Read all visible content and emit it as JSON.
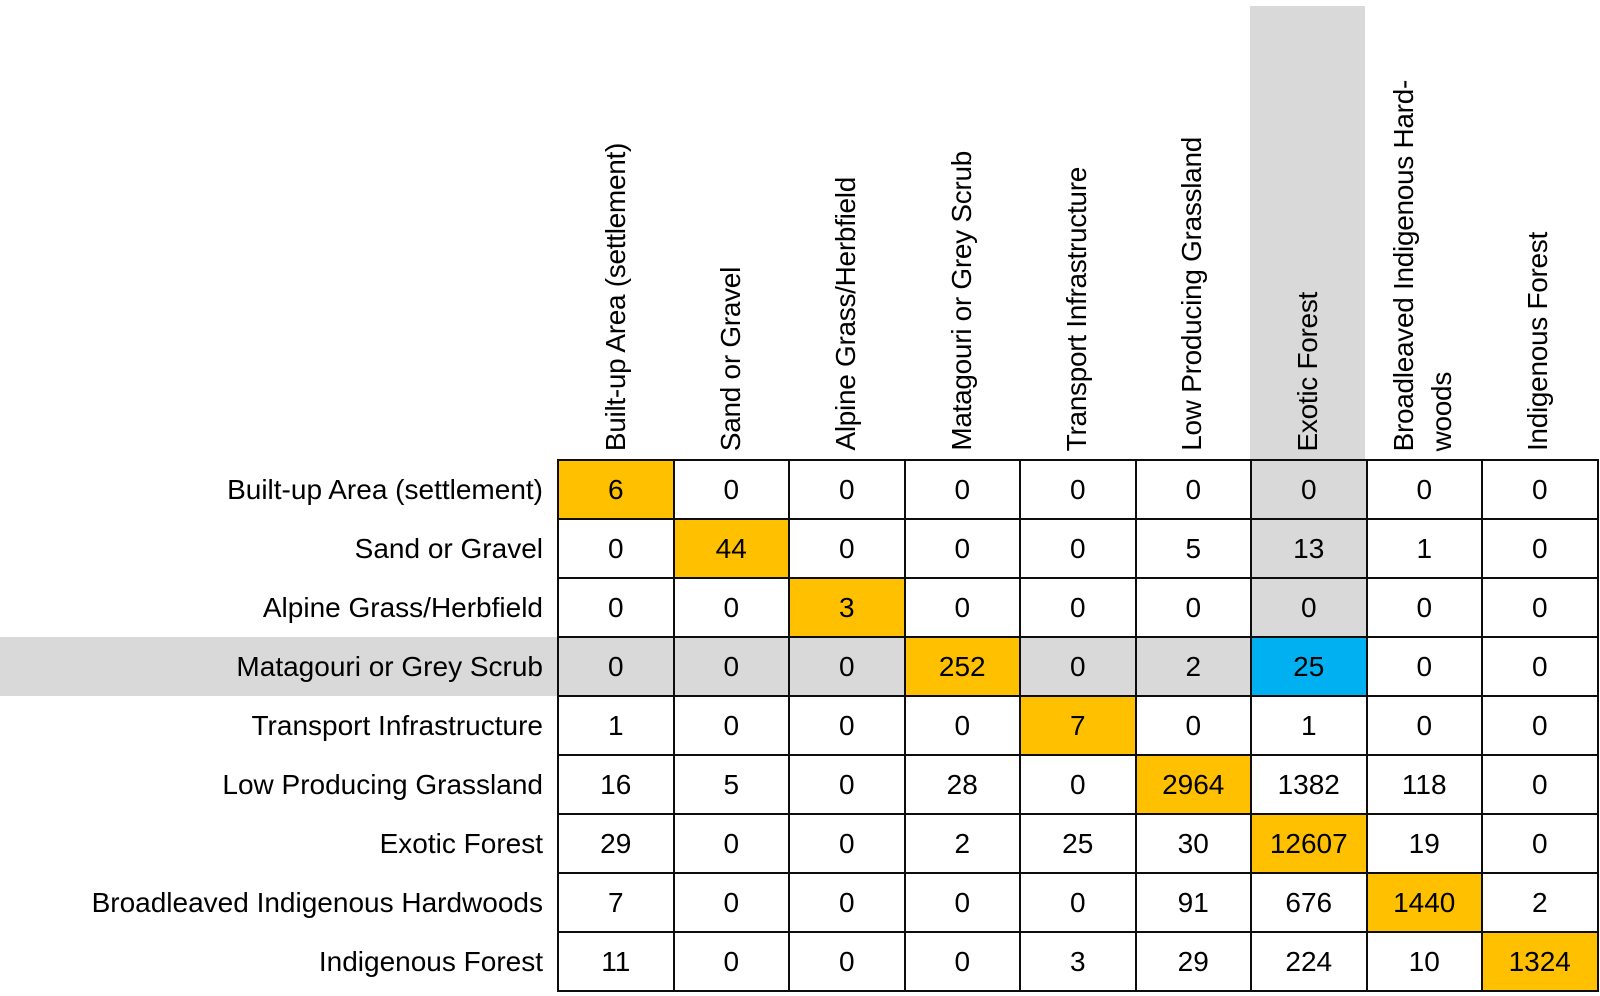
{
  "colors": {
    "diagonal": "#FFC000",
    "selected": "#00B0F0",
    "band": "#D9D9D9",
    "border": "#0d0d0d",
    "text": "#000000",
    "background": "#FFFFFF"
  },
  "chart_data": {
    "type": "table",
    "title": "",
    "description_visible": false,
    "row_labels": [
      "Built-up Area (settlement)",
      "Sand or Gravel",
      "Alpine Grass/Herbfield",
      "Matagouri or Grey Scrub",
      "Transport Infrastructure",
      "Low Producing Grassland",
      "Exotic Forest",
      "Broadleaved Indigenous Hardwoods",
      "Indigenous Forest"
    ],
    "col_labels": [
      "Built-up Area (settlement)",
      "Sand or Gravel",
      "Alpine Grass/Herbfield",
      "Matagouri or Grey Scrub",
      "Transport Infrastructure",
      "Low Producing Grassland",
      "Exotic Forest",
      "Broadleaved Indigenous Hard-woods",
      "Indigenous Forest"
    ],
    "col_display": [
      "Built-up Area (settlement)",
      "Sand or Gravel",
      "Alpine Grass/Herbfield",
      "Matagouri or Grey Scrub",
      "Transport Infrastructure",
      "Low Producing Grassland",
      "Exotic Forest",
      "Broadleaved Indigenous Hard-\nwoods",
      "Indigenous Forest"
    ],
    "matrix": [
      [
        6,
        0,
        0,
        0,
        0,
        0,
        0,
        0,
        0
      ],
      [
        0,
        44,
        0,
        0,
        0,
        5,
        13,
        1,
        0
      ],
      [
        0,
        0,
        3,
        0,
        0,
        0,
        0,
        0,
        0
      ],
      [
        0,
        0,
        0,
        252,
        0,
        2,
        25,
        0,
        0
      ],
      [
        1,
        0,
        0,
        0,
        7,
        0,
        1,
        0,
        0
      ],
      [
        16,
        5,
        0,
        28,
        0,
        2964,
        1382,
        118,
        0
      ],
      [
        29,
        0,
        0,
        2,
        25,
        30,
        12607,
        19,
        0
      ],
      [
        7,
        0,
        0,
        0,
        0,
        91,
        676,
        1440,
        2
      ],
      [
        11,
        0,
        0,
        0,
        3,
        29,
        224,
        10,
        1324
      ]
    ],
    "highlight": {
      "row_index": 3,
      "col_index": 6,
      "row_label": "Matagouri or Grey Scrub",
      "col_label": "Exotic Forest",
      "value": 25
    },
    "diagonal_highlighted": true
  }
}
